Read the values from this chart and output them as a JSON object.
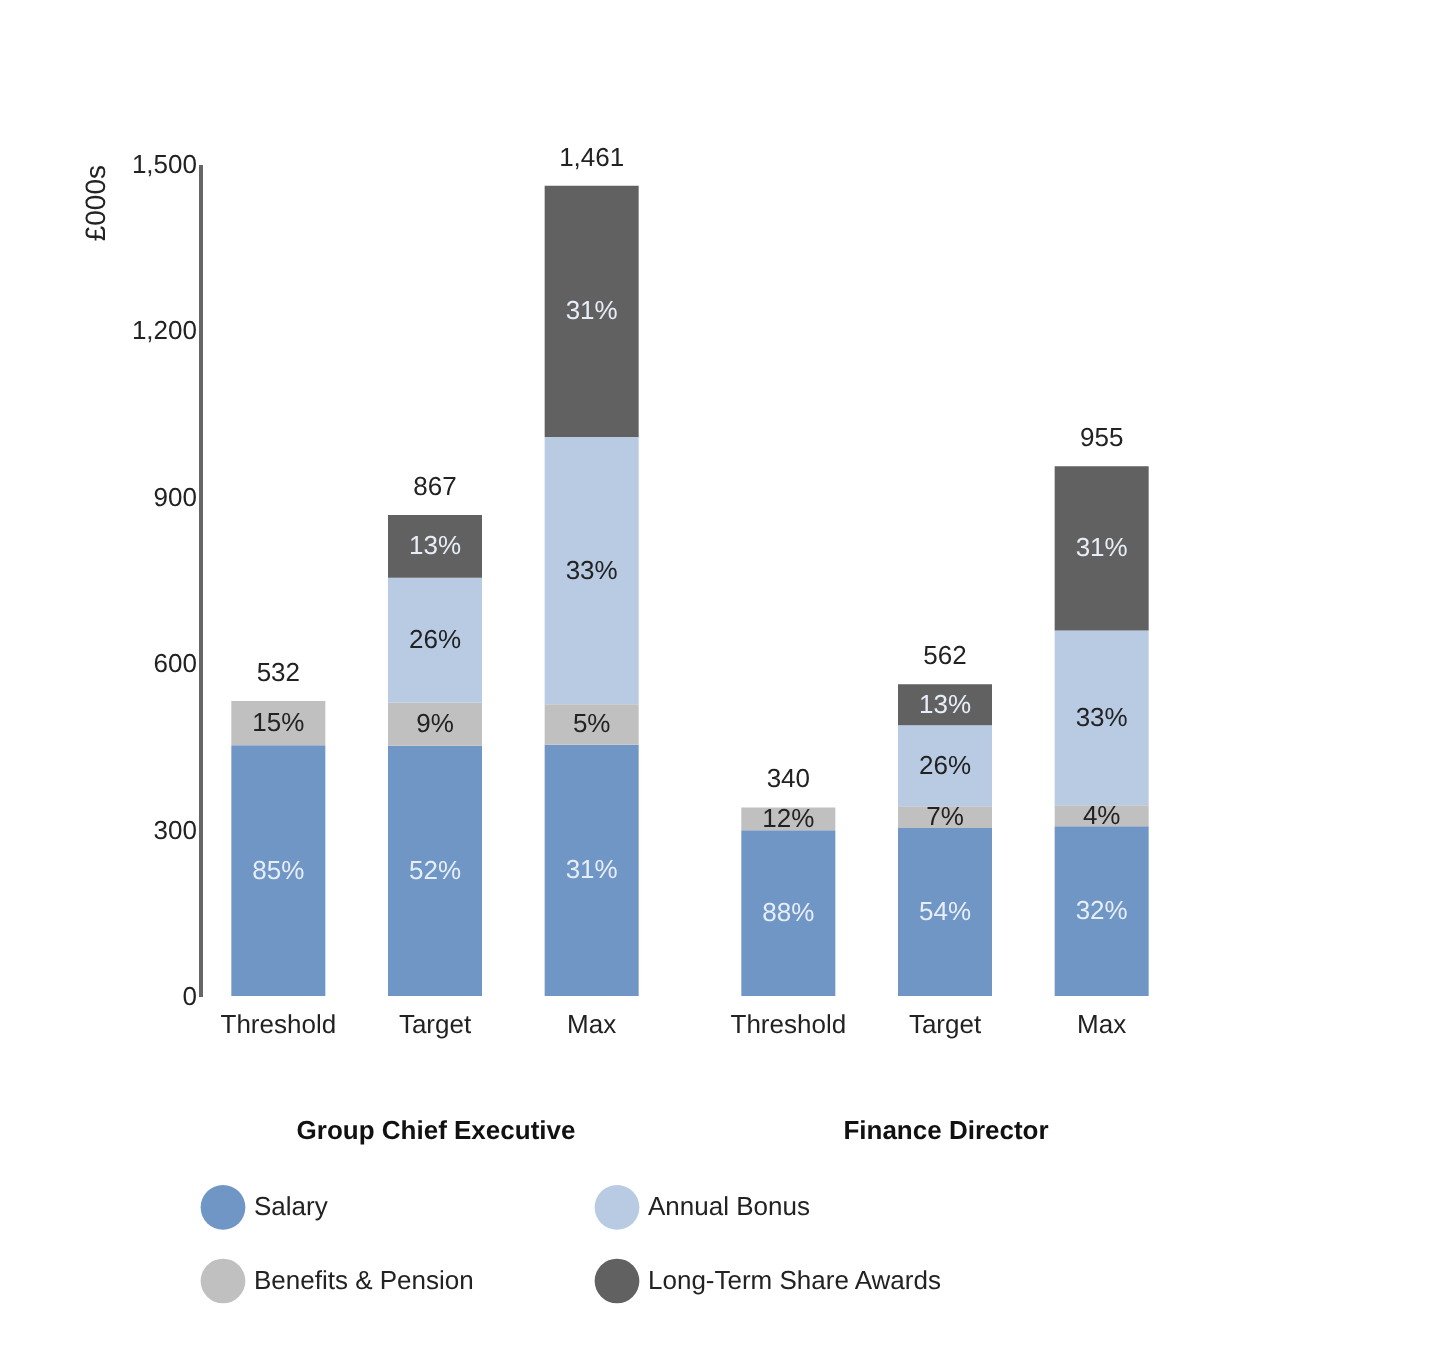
{
  "chart_data": [
    {
      "type": "bar",
      "stacked": true,
      "xlabel": "Group Chief Executive",
      "ylabel": "£000s",
      "categories": [
        "Threshold",
        "Target",
        "Max"
      ],
      "ylim": [
        0,
        1500
      ],
      "yticks": [
        0,
        300,
        600,
        900,
        {
          "value": 1200,
          "label": "1,200"
        },
        {
          "value": 1500,
          "label": "1,500"
        }
      ],
      "grid": false,
      "legend": "bottom",
      "series": [
        {
          "name": "Salary",
          "color": "#7096c6",
          "values": [
            452,
            451,
            453
          ]
        },
        {
          "name": "Benefits & Pension",
          "color": "#c0c0c0",
          "values": [
            80,
            78,
            73
          ]
        },
        {
          "name": "Annual Bonus",
          "color": "#b8cbe3",
          "values": [
            null,
            225,
            482
          ]
        },
        {
          "name": "Long-Term Share Awards",
          "color": "#616161",
          "values": [
            null,
            113,
            453
          ]
        }
      ],
      "totals": [
        "532",
        "867",
        "1,461"
      ],
      "annotations": [
        "85%",
        "15%",
        "52%",
        "9%",
        "26%",
        "13%",
        "31%",
        "5%",
        "33%",
        "31%"
      ]
    },
    {
      "type": "bar",
      "stacked": true,
      "xlabel": "Finance Director",
      "categories": [
        "Threshold",
        "Target",
        "Max"
      ],
      "ylim": [
        0,
        1500
      ],
      "tick_labels": "x",
      "grid": false,
      "legend": "bottom",
      "series": [
        {
          "name": "Salary",
          "color": "#7096c6",
          "values": [
            299,
            303,
            306
          ]
        },
        {
          "name": "Benefits & Pension",
          "color": "#c0c0c0",
          "values": [
            41,
            39,
            38
          ]
        },
        {
          "name": "Annual Bonus",
          "color": "#b8cbe3",
          "values": [
            null,
            146,
            315
          ]
        },
        {
          "name": "Long-Term Share Awards",
          "color": "#616161",
          "values": [
            null,
            74,
            296
          ]
        }
      ],
      "totals": [
        "340",
        "562",
        "955"
      ],
      "annotations": [
        "88%",
        "12%",
        "54%",
        "7%",
        "26%",
        "13%",
        "32%",
        "4%",
        "33%",
        "31%"
      ]
    }
  ]
}
